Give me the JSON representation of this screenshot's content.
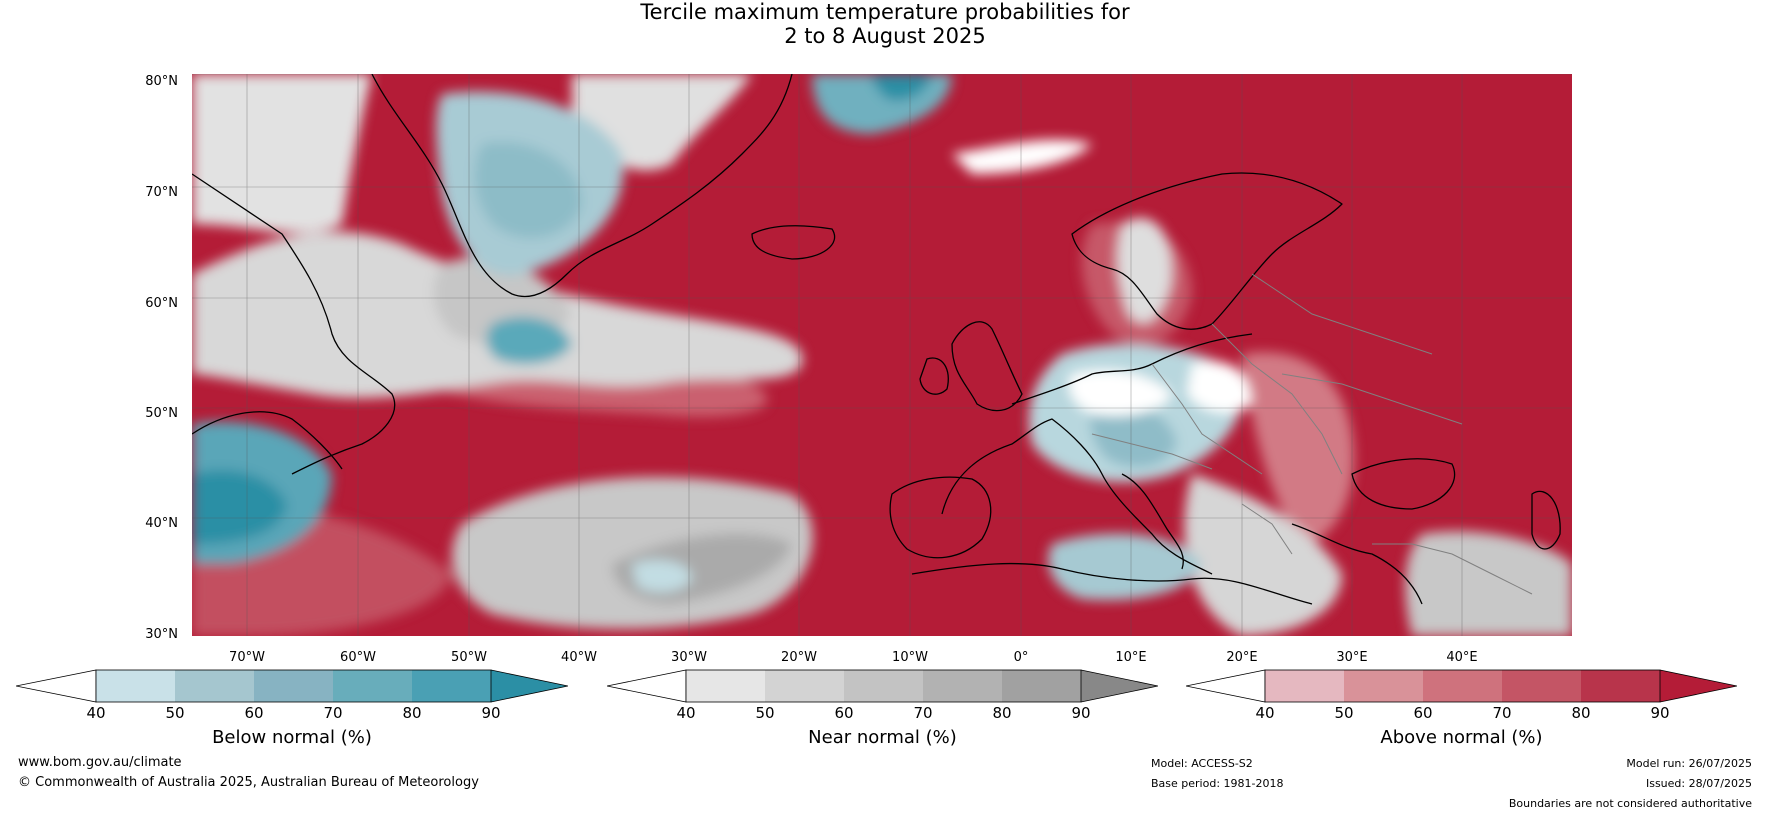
{
  "title": {
    "line1": "Tercile maximum temperature probabilities for",
    "line2": "2 to 8 August 2025"
  },
  "axes": {
    "lat_labels": [
      "80°N",
      "70°N",
      "60°N",
      "50°N",
      "40°N",
      "30°N"
    ],
    "lon_labels": [
      "70°W",
      "60°W",
      "50°W",
      "40°W",
      "30°W",
      "20°W",
      "10°W",
      "0°",
      "10°E",
      "20°E",
      "30°E",
      "40°E"
    ]
  },
  "map": {
    "ocean_color": "#c5283b",
    "gridlines": true,
    "coastline_color": "#000000",
    "border_color": "#808080"
  },
  "colorbars": [
    {
      "title": "Below normal (%)",
      "ticks": [
        "40",
        "50",
        "60",
        "70",
        "80",
        "90"
      ],
      "colors": [
        "#ffffff",
        "#c9e1e8",
        "#a5c6cf",
        "#87b3c2",
        "#68adbb",
        "#4aa0b4",
        "#2b8fa5"
      ]
    },
    {
      "title": "Near normal (%)",
      "ticks": [
        "40",
        "50",
        "60",
        "70",
        "80",
        "90"
      ],
      "colors": [
        "#ffffff",
        "#e6e6e6",
        "#d3d3d3",
        "#c3c3c3",
        "#b2b2b2",
        "#a1a1a1",
        "#888888"
      ]
    },
    {
      "title": "Above normal (%)",
      "ticks": [
        "40",
        "50",
        "60",
        "70",
        "80",
        "90"
      ],
      "colors": [
        "#ffffff",
        "#e5b8c0",
        "#d99299",
        "#cf727d",
        "#c45565",
        "#b8344b",
        "#b41c37"
      ]
    }
  ],
  "footer": {
    "website": "www.bom.gov.au/climate",
    "copyright": "© Commonwealth of Australia 2025, Australian Bureau of Meteorology",
    "model": "Model: ACCESS-S2",
    "base_period": "Base period: 1981-2018",
    "model_run": "Model run: 26/07/2025",
    "issued": "Issued: 28/07/2025",
    "disclaimer": "Boundaries are not considered authoritative"
  }
}
